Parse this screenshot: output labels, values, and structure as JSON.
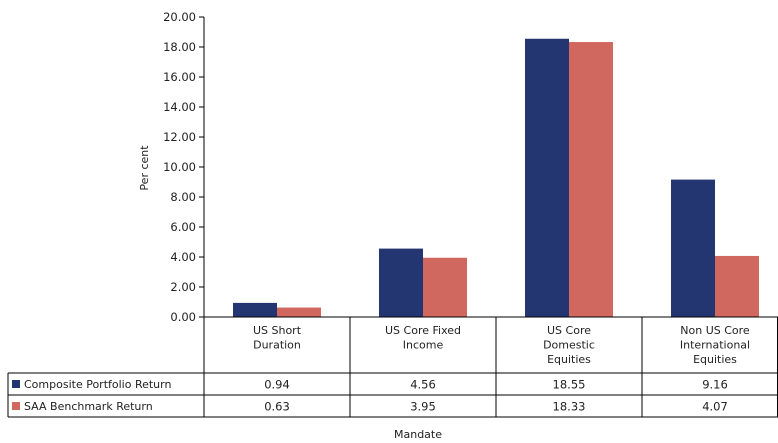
{
  "chart_data": {
    "type": "bar",
    "categories": [
      [
        "US Short",
        "Duration"
      ],
      [
        "US Core Fixed",
        "Income"
      ],
      [
        "US Core",
        "Domestic",
        "Equities"
      ],
      [
        "Non US Core",
        "International",
        "Equities"
      ]
    ],
    "series": [
      {
        "name": "Composite Portfolio Return",
        "color": "#243672",
        "values": [
          0.94,
          4.56,
          18.55,
          9.16
        ],
        "labels": [
          "0.94",
          "4.56",
          "18.55",
          "9.16"
        ]
      },
      {
        "name": "SAA Benchmark Return",
        "color": "#d0685f",
        "values": [
          0.63,
          3.95,
          18.33,
          4.07
        ],
        "labels": [
          "0.63",
          "3.95",
          "18.33",
          "4.07"
        ]
      }
    ],
    "xlabel": "Mandate",
    "ylabel": "Per cent",
    "ylim": [
      0,
      20
    ],
    "yticks": [
      "0.00",
      "2.00",
      "4.00",
      "6.00",
      "8.00",
      "10.00",
      "12.00",
      "14.00",
      "16.00",
      "18.00",
      "20.00"
    ],
    "grid": false,
    "legend": "data table below chart"
  }
}
